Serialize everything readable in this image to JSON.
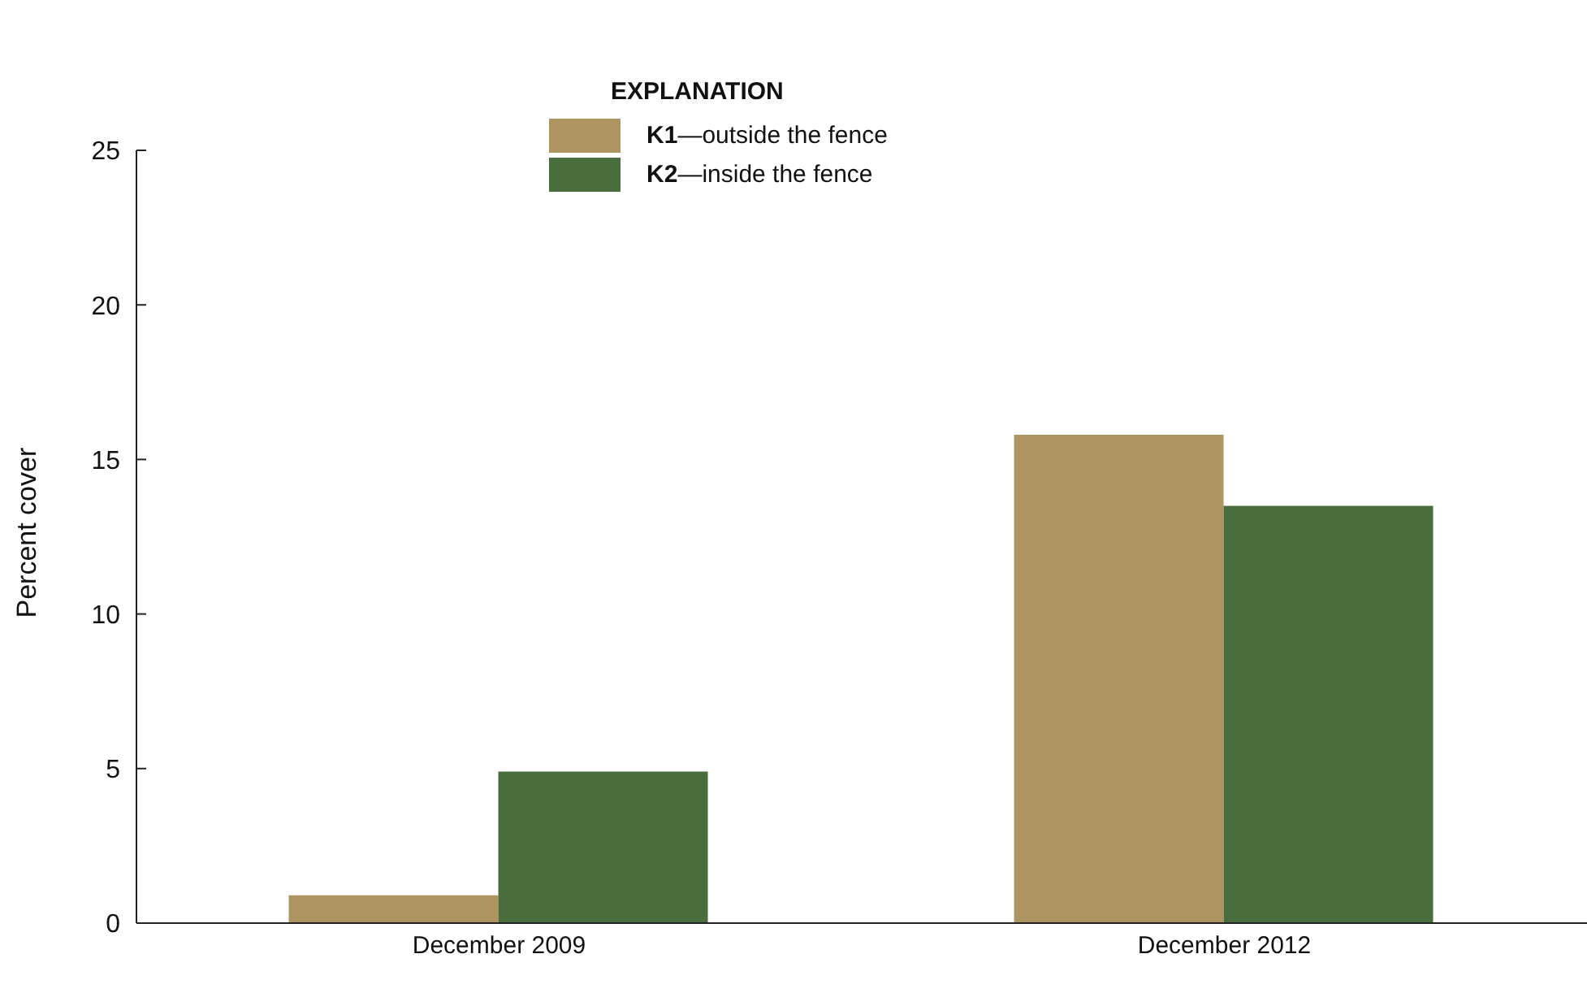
{
  "chart_data": {
    "type": "bar",
    "ylabel": "Percent cover",
    "legend_title": "EXPLANATION",
    "categories": [
      "December 2009",
      "December 2012"
    ],
    "series": [
      {
        "name": "K1—outside the fence",
        "color": "#ae9460",
        "values": [
          0.9,
          15.8
        ]
      },
      {
        "name": "K2—inside the fence",
        "color": "#4a6d3e",
        "values": [
          4.9,
          13.5
        ]
      }
    ],
    "ylim": [
      0,
      25
    ],
    "yticks": [
      0,
      5,
      10,
      15,
      20,
      25
    ],
    "grid": false,
    "legend": "top"
  }
}
